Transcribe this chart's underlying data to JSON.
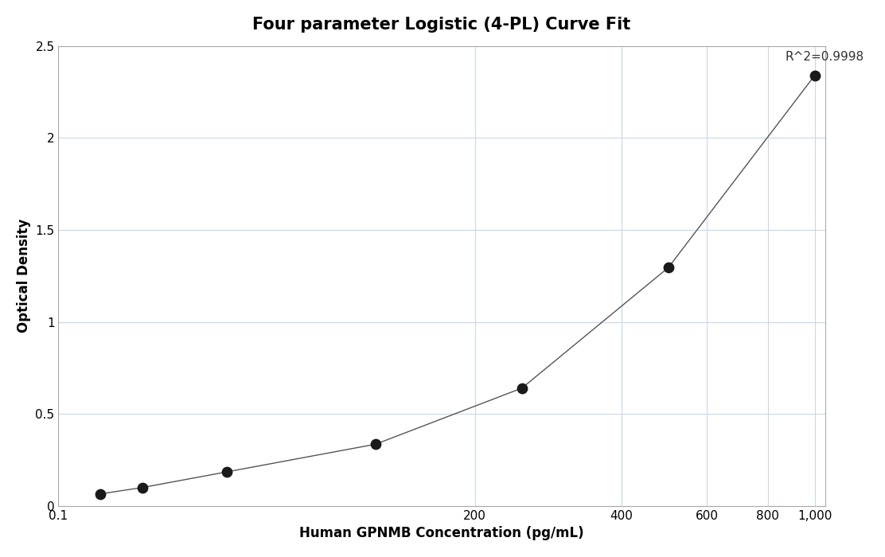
{
  "title": "Four parameter Logistic (4-PL) Curve Fit",
  "xlabel": "Human GPNMB Concentration (pg/mL)",
  "ylabel": "Optical Density",
  "x_data": [
    15.6,
    31.25,
    62.5,
    125,
    250,
    500,
    1000
  ],
  "y_data": [
    0.065,
    0.1,
    0.185,
    0.335,
    0.64,
    1.295,
    2.34
  ],
  "r_squared": "R^2=0.9998",
  "xlim_left": 0.1,
  "xlim_right": 1050,
  "ylim": [
    0,
    2.5
  ],
  "xticks": [
    0.1,
    200,
    400,
    600,
    800,
    1000
  ],
  "xtick_labels": [
    "0.1",
    "200",
    "400",
    "600",
    "800",
    "1,000"
  ],
  "yticks": [
    0,
    0.5,
    1.0,
    1.5,
    2.0,
    2.5
  ],
  "ytick_labels": [
    "0",
    "0.5",
    "1",
    "1.5",
    "2",
    "2.5"
  ],
  "dot_color": "#1a1a1a",
  "dot_size": 80,
  "line_color": "#555555",
  "line_width": 1.0,
  "grid_color": "#c8d8e8",
  "background_color": "#ffffff",
  "title_fontsize": 15,
  "label_fontsize": 12,
  "tick_fontsize": 11,
  "annotation_fontsize": 11,
  "symlog_linthresh": 100,
  "symlog_linscale": 0.5
}
